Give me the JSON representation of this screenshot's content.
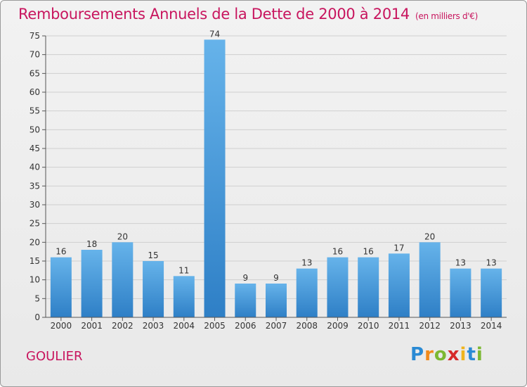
{
  "title": "Remboursements Annuels de la Dette de 2000 à 2014",
  "unit": "(en milliers d'€)",
  "commune": "GOULIER",
  "logo": {
    "text": "Proxiti",
    "letters": [
      {
        "char": "P",
        "color": "#2a8ad4"
      },
      {
        "char": "r",
        "color": "#f08a1c"
      },
      {
        "char": "o",
        "color": "#7cb832"
      },
      {
        "char": "x",
        "color": "#d62a2a"
      },
      {
        "char": "i",
        "color": "#f0b41c"
      },
      {
        "char": "t",
        "color": "#2a8ad4"
      },
      {
        "char": "i",
        "color": "#7cb832"
      }
    ]
  },
  "colors": {
    "bar_light": "#66b3ea",
    "bar_dark": "#2e7fc6",
    "title": "#c8155e"
  },
  "chart_data": {
    "type": "bar",
    "categories": [
      "2000",
      "2001",
      "2002",
      "2003",
      "2004",
      "2005",
      "2006",
      "2007",
      "2008",
      "2009",
      "2010",
      "2011",
      "2012",
      "2013",
      "2014"
    ],
    "values": [
      16,
      18,
      20,
      15,
      11,
      74,
      9,
      9,
      13,
      16,
      16,
      17,
      20,
      13,
      13
    ],
    "ylim": [
      0,
      75
    ],
    "yticks": [
      0,
      5,
      10,
      15,
      20,
      25,
      30,
      35,
      40,
      45,
      50,
      55,
      60,
      65,
      70,
      75
    ],
    "grid": true,
    "data_labels": true
  }
}
